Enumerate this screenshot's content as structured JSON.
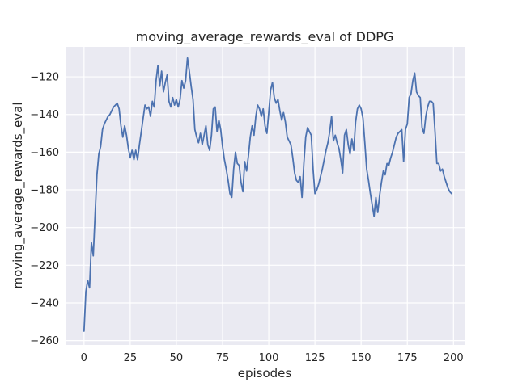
{
  "title": "moving_average_rewards_eval of DDPG",
  "colors": {
    "figure_background": "#ffffff",
    "axes_background": "#eaeaf2",
    "grid": "#ffffff",
    "line": "#4c72b0",
    "text": "#262626"
  },
  "chart_data": {
    "type": "line",
    "title": "moving_average_rewards_eval of DDPG",
    "xlabel": "episodes",
    "ylabel": "moving_average_rewards_eval",
    "legend": null,
    "grid": true,
    "marker": "none",
    "xlim": [
      -10,
      206
    ],
    "ylim": [
      -262.3,
      -104.1
    ],
    "xticks": [
      0,
      25,
      50,
      75,
      100,
      125,
      150,
      175,
      200
    ],
    "xticklabels": [
      "0",
      "25",
      "50",
      "75",
      "100",
      "125",
      "150",
      "175",
      "200"
    ],
    "yticks": [
      -260,
      -240,
      -220,
      -200,
      -180,
      -160,
      -140,
      -120
    ],
    "yticklabels": [
      "−260",
      "−240",
      "−220",
      "−200",
      "−180",
      "−160",
      "−140",
      "−120"
    ],
    "series": [
      {
        "name": "moving_average_rewards_eval",
        "x_start": 0,
        "x_step": 1,
        "values": [
          -255,
          -234,
          -228,
          -232,
          -208,
          -215,
          -193,
          -172,
          -161,
          -157,
          -148,
          -145,
          -143,
          -141,
          -140,
          -138,
          -136,
          -135,
          -134,
          -137,
          -146,
          -152,
          -146,
          -151,
          -158,
          -163,
          -159,
          -164,
          -159,
          -164,
          -156,
          -149,
          -142,
          -135,
          -137,
          -136,
          -141,
          -133,
          -136,
          -122,
          -114,
          -125,
          -117,
          -128,
          -123,
          -119,
          -133,
          -136,
          -131,
          -135,
          -132,
          -136,
          -132,
          -122,
          -126,
          -122,
          -110,
          -117,
          -125,
          -132,
          -148,
          -152,
          -155,
          -150,
          -156,
          -151,
          -146,
          -156,
          -159,
          -151,
          -137,
          -136,
          -149,
          -143,
          -148,
          -157,
          -164,
          -169,
          -175,
          -182,
          -184,
          -169,
          -160,
          -166,
          -167,
          -176,
          -181,
          -165,
          -170,
          -162,
          -152,
          -146,
          -151,
          -141,
          -135,
          -137,
          -141,
          -137,
          -146,
          -150,
          -139,
          -127,
          -123,
          -131,
          -134,
          -132,
          -138,
          -143,
          -139,
          -144,
          -152,
          -154,
          -156,
          -163,
          -171,
          -175,
          -176,
          -173,
          -184,
          -166,
          -152,
          -147,
          -149,
          -151,
          -169,
          -182,
          -180,
          -177,
          -173,
          -169,
          -164,
          -159,
          -155,
          -149,
          -141,
          -154,
          -151,
          -155,
          -158,
          -164,
          -171,
          -151,
          -148,
          -156,
          -161,
          -153,
          -159,
          -144,
          -137,
          -135,
          -137,
          -142,
          -155,
          -169,
          -175,
          -182,
          -188,
          -194,
          -184,
          -192,
          -183,
          -176,
          -170,
          -172,
          -166,
          -167,
          -163,
          -160,
          -156,
          -152,
          -150,
          -149,
          -148,
          -165,
          -148,
          -145,
          -131,
          -129,
          -122,
          -118,
          -128,
          -130,
          -131,
          -147,
          -150,
          -141,
          -136,
          -133,
          -133,
          -134,
          -149,
          -166,
          -166,
          -170,
          -169,
          -173,
          -176,
          -179,
          -181,
          -182
        ]
      }
    ]
  }
}
